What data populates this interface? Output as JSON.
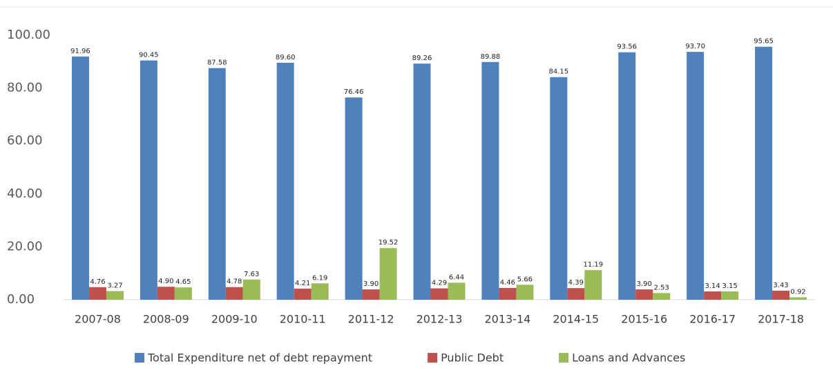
{
  "chart_data": {
    "type": "bar",
    "categories": [
      "2007-08",
      "2008-09",
      "2009-10",
      "2010-11",
      "2011-12",
      "2012-13",
      "2013-14",
      "2014-15",
      "2015-16",
      "2016-17",
      "2017-18"
    ],
    "series": [
      {
        "name": "Total Expenditure net of debt repayment",
        "color": "#4f81bd",
        "values": [
          91.96,
          90.45,
          87.58,
          89.6,
          76.46,
          89.26,
          89.88,
          84.15,
          93.56,
          93.7,
          95.65
        ],
        "value_labels": [
          "91.96",
          "90.45",
          "87.58",
          "89.60",
          "76.46",
          "89.26",
          "89.88",
          "84.15",
          "93.56",
          "93.70",
          "95.65"
        ]
      },
      {
        "name": "Public Debt",
        "color": "#c0504d",
        "values": [
          4.76,
          4.9,
          4.78,
          4.21,
          3.9,
          4.29,
          4.46,
          4.39,
          3.9,
          3.14,
          3.43
        ],
        "value_labels": [
          "4.76",
          "4.90",
          "4.78",
          "4.21",
          "3.90",
          "4.29",
          "4.46",
          "4.39",
          "3.90",
          "3.14",
          "3.43"
        ]
      },
      {
        "name": "Loans and Advances",
        "color": "#9bbb59",
        "values": [
          3.27,
          4.65,
          7.63,
          6.19,
          19.52,
          6.44,
          5.66,
          11.19,
          2.53,
          3.15,
          0.92
        ],
        "value_labels": [
          "3.27",
          "4.65",
          "7.63",
          "6.19",
          "19.52",
          "6.44",
          "5.66",
          "11.19",
          "2.53",
          "3.15",
          "0.92"
        ]
      }
    ],
    "ylim": [
      0,
      100
    ],
    "yticks": [
      {
        "value": 0,
        "label": "0.00"
      },
      {
        "value": 20,
        "label": "20.00"
      },
      {
        "value": 40,
        "label": "40.00"
      },
      {
        "value": 60,
        "label": "60.00"
      },
      {
        "value": 80,
        "label": "80.00"
      },
      {
        "value": 100,
        "label": "100.00"
      }
    ],
    "grid": false,
    "legend": "bottom"
  }
}
